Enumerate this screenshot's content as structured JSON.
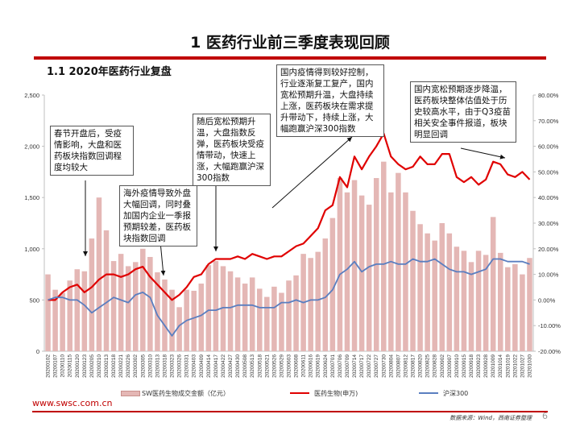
{
  "slide": {
    "title": "1  医药行业前三季度表现回顾",
    "subtitle": "1.1 2020年医药行业复盘",
    "footer_url": "www.swsc.com.cn",
    "source": "数据来源：Wind，西南证券整理",
    "page_number": "6"
  },
  "annotations": [
    {
      "text": "国内疫情得到较好控制，行业逐渐复工复产，国内宽松预期升温，大盘持续上涨，医药板块在需求提升带动下，持续上涨，大幅跑赢沪深300指数"
    },
    {
      "text": "国内宽松预期逐步降温，医药板块整体估值处于历史较高水平，由于Q3疫苗相关安全事件报道，板块明显回调"
    },
    {
      "text": "春节开盘后，受疫情影响，大盘和医药板块指数回调程度均较大"
    },
    {
      "text": "随后宽松预期升温，大盘指数反弹，医药板块受疫情带动，快速上涨，大幅跑赢沪深300指数"
    },
    {
      "text": "海外疫情导致外盘大幅回调，同时叠加国内企业一季报预期较差，医药板块指数回调"
    }
  ],
  "chart_data": {
    "type": "bar+line",
    "left_axis": {
      "ylim": [
        0,
        2500
      ],
      "ticks": [
        "0",
        "500",
        "1,000",
        "1,500",
        "2,000",
        "2,500"
      ]
    },
    "right_axis": {
      "ylim": [
        -0.2,
        0.8
      ],
      "ticks": [
        "-20.00%",
        "-10.00%",
        "0.00%",
        "10.00%",
        "20.00%",
        "30.00%",
        "40.00%",
        "50.00%",
        "60.00%",
        "70.00%",
        "80.00%"
      ]
    },
    "x_tick_labels": [
      "20200102",
      "20200107",
      "20200110",
      "20200115",
      "20200120",
      "20200123",
      "20200205",
      "20200210",
      "20200213",
      "20200218",
      "20200221",
      "20200226",
      "20200302",
      "20200305",
      "20200310",
      "20200313",
      "20200318",
      "20200323",
      "20200326",
      "20200331",
      "20200403",
      "20200409",
      "20200414",
      "20200417",
      "20200422",
      "20200427",
      "20200430",
      "20200508",
      "20200513",
      "20200518",
      "20200521",
      "20200526",
      "20200529",
      "20200603",
      "20200608",
      "20200611",
      "20200616",
      "20200619",
      "20200624",
      "20200701",
      "20200706",
      "20200709",
      "20200714",
      "20200717",
      "20200722",
      "20200727",
      "20200730",
      "20200804",
      "20200807",
      "20200812",
      "20200817",
      "20200820",
      "20200825",
      "20200828",
      "20200902",
      "20200907",
      "20200910",
      "20200915",
      "20200918",
      "20200923",
      "20200928",
      "20201009",
      "20201014",
      "20201019",
      "20201022",
      "20201027",
      "20201030"
    ],
    "series": [
      {
        "name": "SW医药生物成交金额（亿元）",
        "kind": "bar",
        "axis": "left",
        "color": "#e4b7b5",
        "values": [
          750,
          600,
          570,
          690,
          800,
          780,
          1100,
          1500,
          1180,
          880,
          950,
          830,
          870,
          1000,
          920,
          770,
          700,
          600,
          430,
          600,
          590,
          660,
          840,
          880,
          830,
          780,
          720,
          660,
          720,
          610,
          530,
          630,
          570,
          690,
          740,
          950,
          910,
          970,
          1100,
          1300,
          1690,
          1550,
          1670,
          1520,
          1430,
          1690,
          1850,
          1550,
          1740,
          1550,
          1370,
          1240,
          1150,
          1080,
          1250,
          1150,
          1020,
          980,
          870,
          980,
          940,
          1310,
          960,
          820,
          850,
          750,
          910
        ]
      },
      {
        "name": "医药生物(申万)",
        "kind": "line",
        "axis": "right",
        "color": "#e00000",
        "values": [
          0.0,
          0.0,
          0.03,
          0.05,
          0.06,
          0.03,
          0.05,
          0.08,
          0.1,
          0.1,
          0.09,
          0.1,
          0.12,
          0.13,
          0.09,
          0.06,
          0.03,
          0.0,
          0.02,
          0.05,
          0.09,
          0.1,
          0.14,
          0.16,
          0.16,
          0.16,
          0.17,
          0.16,
          0.18,
          0.17,
          0.16,
          0.17,
          0.17,
          0.19,
          0.21,
          0.22,
          0.25,
          0.28,
          0.35,
          0.37,
          0.48,
          0.44,
          0.56,
          0.51,
          0.56,
          0.6,
          0.65,
          0.56,
          0.53,
          0.51,
          0.52,
          0.56,
          0.53,
          0.53,
          0.57,
          0.57,
          0.48,
          0.46,
          0.48,
          0.45,
          0.47,
          0.54,
          0.53,
          0.49,
          0.48,
          0.5,
          0.47
        ]
      },
      {
        "name": "沪深300",
        "kind": "line",
        "axis": "right",
        "color": "#5a7ec0",
        "values": [
          0.0,
          0.01,
          0.01,
          0.0,
          0.0,
          -0.02,
          -0.05,
          -0.03,
          -0.01,
          0.01,
          0.0,
          -0.01,
          0.02,
          0.03,
          0.01,
          -0.06,
          -0.1,
          -0.14,
          -0.1,
          -0.08,
          -0.07,
          -0.06,
          -0.04,
          -0.04,
          -0.03,
          -0.03,
          -0.02,
          -0.02,
          -0.02,
          -0.03,
          -0.03,
          -0.03,
          -0.01,
          -0.01,
          0.0,
          -0.01,
          0.0,
          0.0,
          0.01,
          0.04,
          0.1,
          0.12,
          0.15,
          0.11,
          0.13,
          0.14,
          0.14,
          0.15,
          0.14,
          0.14,
          0.16,
          0.15,
          0.15,
          0.16,
          0.14,
          0.12,
          0.11,
          0.11,
          0.1,
          0.11,
          0.12,
          0.16,
          0.16,
          0.15,
          0.15,
          0.15,
          0.14
        ]
      }
    ]
  }
}
